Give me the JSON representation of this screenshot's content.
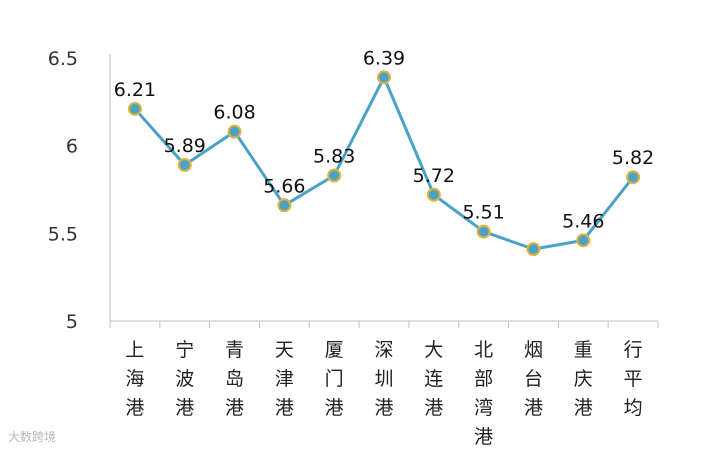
{
  "chart_data": {
    "type": "line",
    "categories": [
      [
        "上",
        "海",
        "港"
      ],
      [
        "宁",
        "波",
        "港"
      ],
      [
        "青",
        "岛",
        "港"
      ],
      [
        "天",
        "津",
        "港"
      ],
      [
        "厦",
        "门",
        "港"
      ],
      [
        "深",
        "圳",
        "港"
      ],
      [
        "大",
        "连",
        "港"
      ],
      [
        "北",
        "部",
        "湾",
        "港"
      ],
      [
        "烟",
        "台",
        "港"
      ],
      [
        "重",
        "庆",
        "港"
      ],
      [
        "行",
        "平",
        "均"
      ]
    ],
    "values": [
      6.21,
      5.89,
      6.08,
      5.66,
      5.83,
      6.39,
      5.72,
      5.51,
      5.41,
      5.46,
      5.82
    ],
    "data_labels": [
      "6.21",
      "5.89",
      "6.08",
      "5.66",
      "5.83",
      "6.39",
      "5.72",
      "5.51",
      "",
      "5.46",
      "5.82"
    ],
    "yticks": [
      "5",
      "5.5",
      "6",
      "6.5"
    ],
    "ylim": [
      5,
      6.5
    ],
    "grid": false,
    "line_color": "#4aa3c6",
    "marker_color": "#e3b23c"
  },
  "watermark": "大数跨境"
}
